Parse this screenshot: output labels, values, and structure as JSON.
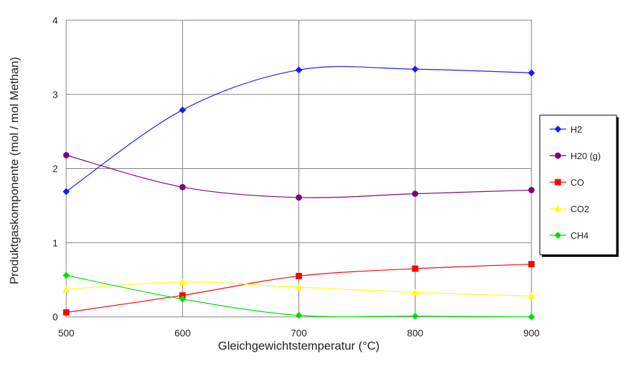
{
  "chart_data": {
    "type": "line",
    "title": "",
    "xlabel": "Gleichgewichtstemperatur (°C)",
    "ylabel": "Produktgaskomponente (mol / mol Methan)",
    "x": [
      500,
      600,
      700,
      800,
      900
    ],
    "x_ticks": [
      "500",
      "600",
      "700",
      "800",
      "900"
    ],
    "y_ticks": [
      "0",
      "1",
      "2",
      "3",
      "4"
    ],
    "xlim": [
      500,
      900
    ],
    "ylim": [
      0,
      4
    ],
    "grid": true,
    "legend_position": "right",
    "series": [
      {
        "name": "H2",
        "color": "#1a1aff",
        "marker": "diamond",
        "values": [
          1.69,
          2.79,
          3.33,
          3.34,
          3.29
        ]
      },
      {
        "name": "H20 (g)",
        "color": "#800080",
        "marker": "circle",
        "values": [
          2.18,
          1.75,
          1.61,
          1.66,
          1.71
        ]
      },
      {
        "name": "CO",
        "color": "#ff0000",
        "marker": "square",
        "values": [
          0.06,
          0.29,
          0.55,
          0.65,
          0.71
        ]
      },
      {
        "name": "CO2",
        "color": "#ffff00",
        "marker": "triangle",
        "values": [
          0.37,
          0.47,
          0.4,
          0.33,
          0.28
        ]
      },
      {
        "name": "CH4",
        "color": "#00e000",
        "marker": "diamond",
        "values": [
          0.56,
          0.24,
          0.02,
          0.01,
          0.0
        ]
      }
    ]
  }
}
